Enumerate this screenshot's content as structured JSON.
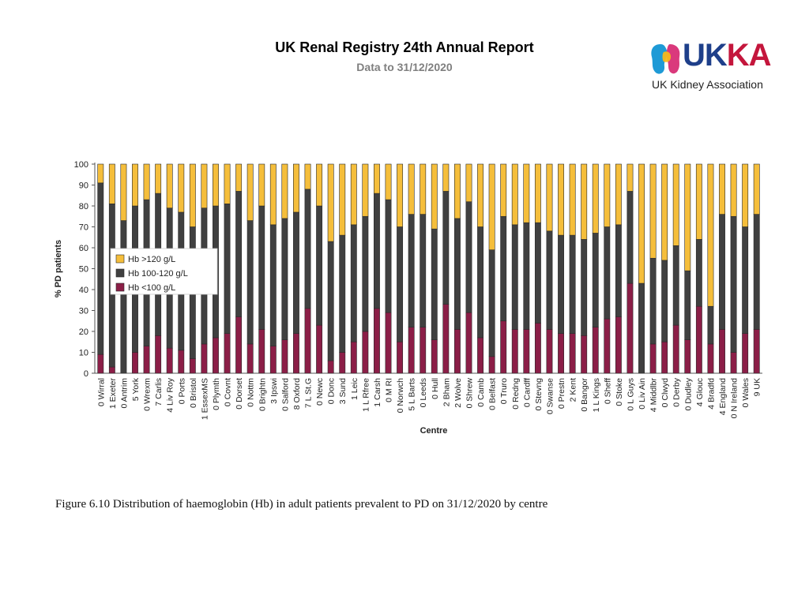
{
  "header": {
    "title": "UK Renal Registry 24th Annual Report",
    "subtitle": "Data to 31/12/2020"
  },
  "logo": {
    "word_uk": "UK",
    "word_ka": "KA",
    "subtitle": "UK Kidney Association",
    "colors": {
      "navy": "#1e3f8a",
      "red": "#c4163c",
      "yellow": "#f5b81c",
      "blue": "#1e9ad6",
      "pink": "#d6246e"
    }
  },
  "caption": "Figure 6.10 Distribution of haemoglobin (Hb) in adult patients prevalent to PD on 31/12/2020 by centre",
  "chart_data": {
    "type": "bar",
    "stacked": true,
    "title": "",
    "xlabel": "Centre",
    "ylabel": "% PD patients",
    "ylim": [
      0,
      100
    ],
    "yticks": [
      0,
      10,
      20,
      30,
      40,
      50,
      60,
      70,
      80,
      90,
      100
    ],
    "legend_position": "left-middle",
    "categories": [
      "0 Wirral",
      "1 Exeter",
      "0 Antrim",
      "5 York",
      "0 Wrexm",
      "7 Carlis",
      "4 Liv Roy",
      "0 Ports",
      "0 Bristol",
      "1 EssexMS",
      "0 Plymth",
      "0 Covnt",
      "0 Dorset",
      "0 Nottm",
      "0 Brightn",
      "3 Ipswi",
      "0 Salford",
      "8 Oxford",
      "7 L St.G",
      "0 Newc",
      "0 Donc",
      "3 Sund",
      "1 Leic",
      "1 L Rfree",
      "1 Carsh",
      "0 M RI",
      "0 Norwch",
      "5 L Barts",
      "0 Leeds",
      "0 Hull",
      "2 Bham",
      "2 Wolve",
      "0 Shrew",
      "0 Camb",
      "0 Belfast",
      "0 Truro",
      "0 Redng",
      "0 Cardff",
      "0 Stevng",
      "0 Swanse",
      "0 Prestn",
      "2 Kent",
      "0 Bangor",
      "1 L Kings",
      "0 Sheff",
      "0 Stoke",
      "0 L Guys",
      "0 Liv Ain",
      "4 Middlbr",
      "0 Clwyd",
      "0 Derby",
      "0 Dudley",
      "4 Glouc",
      "4 Bradfd",
      "4 England",
      "0 N Ireland",
      "0 Wales",
      "9 UK"
    ],
    "series": [
      {
        "name": "Hb <100 g/L",
        "color": "#8b1e47",
        "values": [
          9,
          3,
          0,
          10,
          13,
          18,
          12,
          11,
          7,
          14,
          17,
          19,
          27,
          14,
          21,
          13,
          16,
          19,
          31,
          23,
          6,
          10,
          15,
          20,
          31,
          29,
          15,
          22,
          22,
          16,
          33,
          21,
          29,
          17,
          8,
          25,
          21,
          21,
          24,
          21,
          19,
          19,
          18,
          22,
          26,
          27,
          43,
          0,
          14,
          15,
          23,
          16,
          32,
          14,
          21,
          10,
          19,
          21
        ]
      },
      {
        "name": "Hb 100-120 g/L",
        "color": "#404040",
        "values": [
          82,
          78,
          73,
          70,
          70,
          68,
          67,
          66,
          63,
          65,
          63,
          62,
          60,
          59,
          59,
          58,
          58,
          58,
          57,
          57,
          57,
          56,
          56,
          55,
          55,
          54,
          55,
          54,
          54,
          53,
          54,
          53,
          53,
          53,
          51,
          50,
          50,
          51,
          48,
          47,
          47,
          47,
          46,
          45,
          44,
          44,
          44,
          43,
          41,
          39,
          38,
          33,
          32,
          18,
          55,
          65,
          51,
          55
        ]
      },
      {
        "name": "Hb >120 g/L",
        "color": "#f5be3b",
        "values": [
          9,
          19,
          27,
          20,
          17,
          14,
          21,
          23,
          30,
          21,
          20,
          19,
          13,
          27,
          20,
          29,
          26,
          23,
          12,
          20,
          37,
          34,
          29,
          25,
          14,
          17,
          30,
          24,
          24,
          31,
          13,
          26,
          18,
          30,
          41,
          25,
          29,
          28,
          28,
          32,
          34,
          34,
          36,
          33,
          30,
          29,
          13,
          57,
          45,
          46,
          39,
          51,
          36,
          68,
          24,
          25,
          30,
          24
        ]
      }
    ]
  }
}
